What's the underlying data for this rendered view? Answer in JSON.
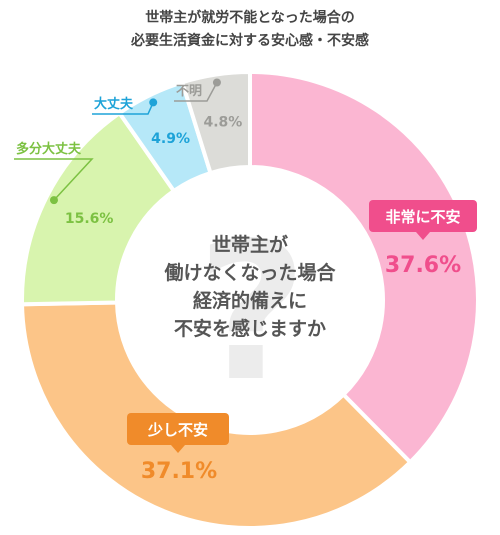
{
  "chart_data": {
    "type": "pie",
    "title_lines": [
      "世帯主が就労不能となった場合の",
      "必要生活資金に対する安心感・不安感"
    ],
    "center_text_lines": [
      "世帯主が",
      "働けなくなった場合",
      "経済的備えに",
      "不安を感じますか"
    ],
    "center_mark": "?",
    "slices": [
      {
        "label": "非常に不安",
        "value": 37.6,
        "value_label": "37.6%",
        "color": "#fbb6d2",
        "text_color": "#f04e8c",
        "badge_color": "#f04e8c"
      },
      {
        "label": "少し不安",
        "value": 37.1,
        "value_label": "37.1%",
        "color": "#fcc588",
        "text_color": "#f08b2a",
        "badge_color": "#f08b2a"
      },
      {
        "label": "多分大丈夫",
        "value": 15.6,
        "value_label": "15.6%",
        "color": "#d8f4ae",
        "text_color": "#7cc142",
        "badge_color": "#7cc142"
      },
      {
        "label": "大丈夫",
        "value": 4.9,
        "value_label": "4.9%",
        "color": "#b6e8f8",
        "text_color": "#1ea3d8",
        "badge_color": "#1ea3d8"
      },
      {
        "label": "不明",
        "value": 4.8,
        "value_label": "4.8%",
        "color": "#dcdcd8",
        "text_color": "#9c9c98",
        "badge_color": "#9c9c98"
      }
    ]
  }
}
